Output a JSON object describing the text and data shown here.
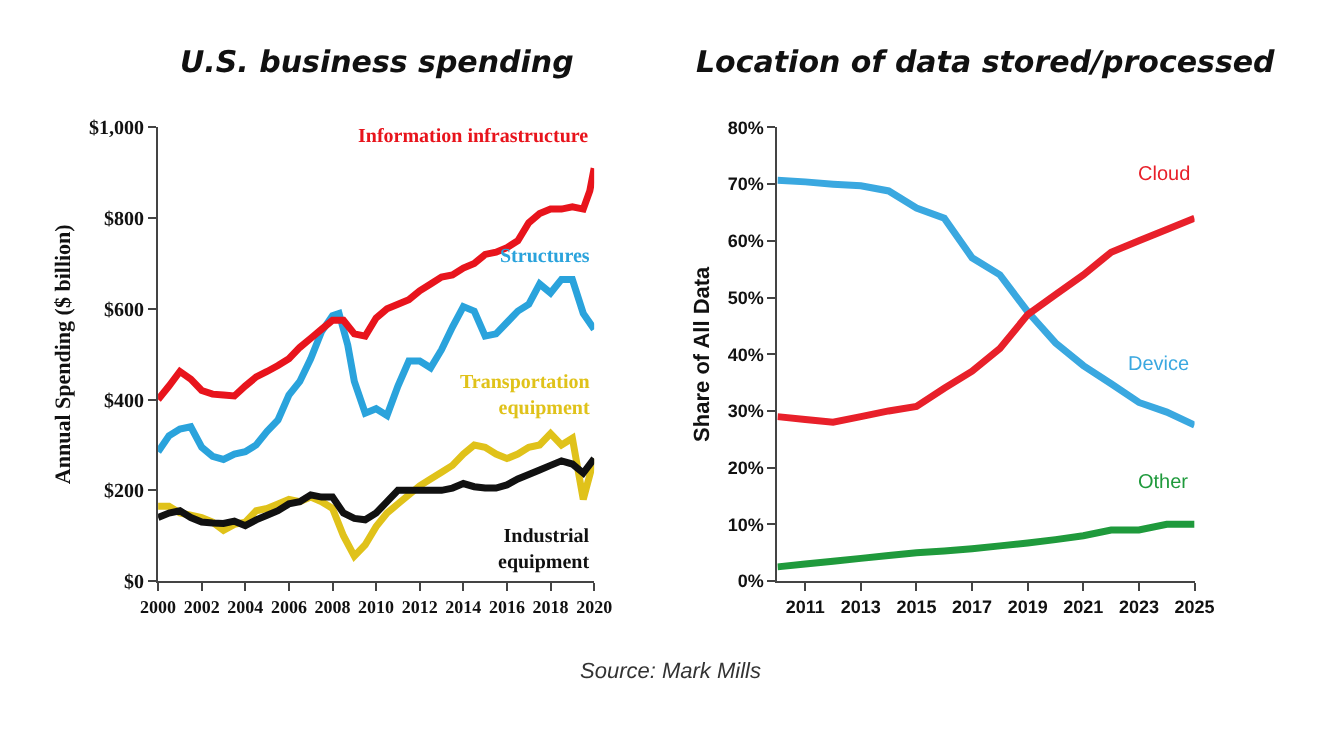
{
  "chart_data": [
    {
      "type": "line",
      "title": "U.S. business spending",
      "ylabel": "Annual Spending ($ billion)",
      "xlim": [
        2000,
        2020
      ],
      "xticks": [
        2000,
        2002,
        2004,
        2006,
        2008,
        2010,
        2012,
        2014,
        2016,
        2018,
        2020
      ],
      "ylim": [
        0,
        1000
      ],
      "yticks": [
        {
          "value": 0,
          "label": "$0"
        },
        {
          "value": 200,
          "label": "$200"
        },
        {
          "value": 400,
          "label": "$400"
        },
        {
          "value": 600,
          "label": "$600"
        },
        {
          "value": 800,
          "label": "$800"
        },
        {
          "value": 1000,
          "label": "$1,000"
        }
      ],
      "legend": false,
      "marker": "none",
      "line_style": "solid",
      "annotations": [
        "Source: Mark Mills"
      ],
      "series": [
        {
          "name": "Transportation\nequipment",
          "color": "#e0c21a",
          "x": [
            2000,
            2000.5,
            2001,
            2001.5,
            2002,
            2002.5,
            2003,
            2003.5,
            2004,
            2004.5,
            2005,
            2005.5,
            2006,
            2006.5,
            2007,
            2007.5,
            2008,
            2008.5,
            2009,
            2009.5,
            2010,
            2010.5,
            2011,
            2011.5,
            2012,
            2012.5,
            2013,
            2013.5,
            2014,
            2014.5,
            2015,
            2015.5,
            2016,
            2016.5,
            2017,
            2017.5,
            2018,
            2018.5,
            2019,
            2019.5,
            2020
          ],
          "values": [
            165,
            165,
            150,
            145,
            140,
            130,
            112,
            125,
            130,
            155,
            160,
            170,
            180,
            175,
            185,
            175,
            160,
            100,
            55,
            80,
            120,
            150,
            170,
            190,
            210,
            225,
            240,
            255,
            280,
            300,
            295,
            280,
            270,
            280,
            295,
            300,
            325,
            300,
            315,
            180,
            270
          ]
        },
        {
          "name": "Structures",
          "color": "#2aa3dc",
          "x": [
            2000,
            2000.5,
            2001,
            2001.5,
            2002,
            2002.5,
            2003,
            2003.5,
            2004,
            2004.5,
            2005,
            2005.5,
            2006,
            2006.5,
            2007,
            2007.5,
            2008,
            2008.3,
            2008.7,
            2009,
            2009.5,
            2010,
            2010.5,
            2011,
            2011.5,
            2012,
            2012.5,
            2013,
            2013.5,
            2014,
            2014.5,
            2015,
            2015.5,
            2016,
            2016.5,
            2017,
            2017.5,
            2018,
            2018.5,
            2019,
            2019.5,
            2020
          ],
          "values": [
            285,
            320,
            335,
            340,
            295,
            275,
            268,
            280,
            285,
            300,
            330,
            355,
            410,
            440,
            490,
            550,
            585,
            590,
            520,
            440,
            370,
            380,
            365,
            430,
            485,
            485,
            470,
            510,
            560,
            605,
            595,
            540,
            545,
            570,
            595,
            610,
            655,
            635,
            665,
            665,
            590,
            555
          ]
        },
        {
          "name": "Information infrastructure",
          "color": "#e8141c",
          "x": [
            2000,
            2000.5,
            2001,
            2001.5,
            2002,
            2002.5,
            2003,
            2003.5,
            2004,
            2004.5,
            2005,
            2005.5,
            2006,
            2006.5,
            2007,
            2007.5,
            2008,
            2008.5,
            2009,
            2009.5,
            2010,
            2010.5,
            2011,
            2011.5,
            2012,
            2012.5,
            2013,
            2013.5,
            2014,
            2014.5,
            2015,
            2015.5,
            2016,
            2016.5,
            2017,
            2017.5,
            2018,
            2018.5,
            2019,
            2019.5,
            2019.8,
            2020
          ],
          "values": [
            400,
            430,
            462,
            445,
            420,
            412,
            410,
            408,
            430,
            450,
            462,
            475,
            490,
            515,
            535,
            555,
            575,
            575,
            545,
            540,
            580,
            600,
            610,
            620,
            640,
            655,
            670,
            675,
            690,
            700,
            720,
            725,
            735,
            750,
            790,
            810,
            820,
            820,
            825,
            820,
            860,
            910
          ]
        },
        {
          "name": "Industrial\nequipment",
          "color": "#111111",
          "x": [
            2000,
            2000.5,
            2001,
            2001.5,
            2002,
            2002.5,
            2003,
            2003.5,
            2004,
            2004.5,
            2005,
            2005.5,
            2006,
            2006.5,
            2007,
            2007.5,
            2008,
            2008.5,
            2009,
            2009.5,
            2010,
            2010.5,
            2011,
            2011.5,
            2012,
            2012.5,
            2013,
            2013.5,
            2014,
            2014.5,
            2015,
            2015.5,
            2016,
            2016.5,
            2017,
            2017.5,
            2018,
            2018.5,
            2019,
            2019.5,
            2020
          ],
          "values": [
            140,
            150,
            155,
            140,
            130,
            128,
            127,
            132,
            122,
            135,
            145,
            155,
            170,
            175,
            190,
            185,
            185,
            150,
            138,
            135,
            150,
            175,
            200,
            200,
            200,
            200,
            200,
            205,
            215,
            208,
            205,
            205,
            212,
            225,
            235,
            245,
            255,
            265,
            258,
            238,
            270
          ]
        }
      ]
    },
    {
      "type": "line",
      "title": "Location of data stored/processed",
      "ylabel": "Share of All Data",
      "xlim": [
        2010,
        2025
      ],
      "xticks": [
        2011,
        2013,
        2015,
        2017,
        2019,
        2021,
        2023,
        2025
      ],
      "ylim": [
        0,
        80
      ],
      "yticks": [
        {
          "value": 0,
          "label": "0%"
        },
        {
          "value": 10,
          "label": "10%"
        },
        {
          "value": 20,
          "label": "20%"
        },
        {
          "value": 30,
          "label": "30%"
        },
        {
          "value": 40,
          "label": "40%"
        },
        {
          "value": 50,
          "label": "50%"
        },
        {
          "value": 60,
          "label": "60%"
        },
        {
          "value": 70,
          "label": "70%"
        },
        {
          "value": 80,
          "label": "80%"
        }
      ],
      "legend": false,
      "marker": "none",
      "line_style": "solid",
      "x": [
        2010,
        2011,
        2012,
        2013,
        2014,
        2015,
        2016,
        2017,
        2018,
        2019,
        2020,
        2021,
        2022,
        2023,
        2024,
        2025
      ],
      "series": [
        {
          "name": "Device",
          "color": "#3aa8e0",
          "values": [
            70.7,
            70.4,
            70,
            69.7,
            68.8,
            65.8,
            64,
            57,
            54,
            47.5,
            42,
            38,
            34.8,
            31.5,
            29.8,
            27.5
          ]
        },
        {
          "name": "Cloud",
          "color": "#e8202a",
          "values": [
            29,
            28.5,
            28,
            29,
            30,
            30.8,
            34,
            37,
            41,
            47,
            50.5,
            54,
            58,
            60,
            62,
            64
          ]
        },
        {
          "name": "Other",
          "color": "#1f9a3c",
          "values": [
            2.5,
            3,
            3.5,
            4,
            4.5,
            5,
            5.3,
            5.7,
            6.2,
            6.7,
            7.3,
            8,
            9,
            9,
            10,
            10
          ]
        }
      ]
    }
  ]
}
